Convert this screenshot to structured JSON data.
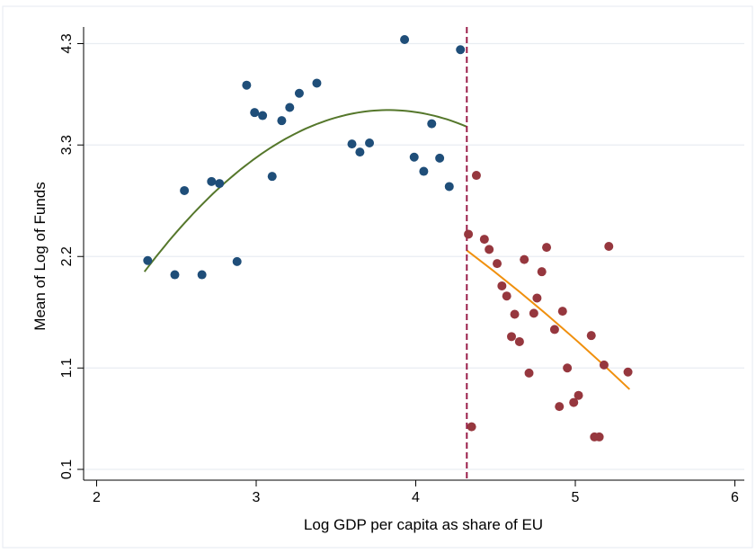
{
  "chart_data": {
    "type": "scatter",
    "title": "",
    "xlabel": "Log GDP per capita as share of EU",
    "ylabel": "Mean of Log of Funds",
    "xlim": [
      2,
      6
    ],
    "ylim": [
      0.1,
      4.3
    ],
    "xticks": [
      "2",
      "3",
      "4",
      "5",
      "6"
    ],
    "yticks": [
      "0.1",
      "1.1",
      "2.2",
      "3.3",
      "4.3"
    ],
    "grid": true,
    "threshold_x": 4.32,
    "colors": {
      "left_points": "#1f4e79",
      "right_points": "#96373e",
      "left_fit": "#55772b",
      "right_fit": "#f0900e",
      "threshold": "#9a1e4a"
    },
    "series": [
      {
        "points": [
          [
            2.32,
            2.16
          ],
          [
            2.49,
            2.02
          ],
          [
            2.55,
            2.85
          ],
          [
            2.66,
            2.02
          ],
          [
            2.72,
            2.94
          ],
          [
            2.77,
            2.92
          ],
          [
            2.88,
            2.15
          ],
          [
            2.94,
            3.89
          ],
          [
            2.99,
            3.62
          ],
          [
            3.04,
            3.59
          ],
          [
            3.1,
            2.99
          ],
          [
            3.16,
            3.54
          ],
          [
            3.21,
            3.67
          ],
          [
            3.27,
            3.81
          ],
          [
            3.38,
            3.91
          ],
          [
            3.6,
            3.31
          ],
          [
            3.65,
            3.23
          ],
          [
            3.71,
            3.32
          ],
          [
            3.93,
            4.34
          ],
          [
            3.99,
            3.18
          ],
          [
            4.05,
            3.04
          ],
          [
            4.1,
            3.51
          ],
          [
            4.15,
            3.17
          ],
          [
            4.21,
            2.89
          ],
          [
            4.28,
            4.24
          ]
        ],
        "fit": [
          [
            2.3,
            2.05
          ],
          [
            3.75,
            3.64
          ],
          [
            4.32,
            3.48
          ]
        ]
      },
      {
        "points": [
          [
            4.33,
            2.42
          ],
          [
            4.35,
            0.52
          ],
          [
            4.38,
            3.0
          ],
          [
            4.43,
            2.37
          ],
          [
            4.46,
            2.27
          ],
          [
            4.51,
            2.13
          ],
          [
            4.54,
            1.91
          ],
          [
            4.57,
            1.81
          ],
          [
            4.6,
            1.41
          ],
          [
            4.62,
            1.63
          ],
          [
            4.65,
            1.36
          ],
          [
            4.68,
            2.17
          ],
          [
            4.71,
            1.05
          ],
          [
            4.74,
            1.64
          ],
          [
            4.76,
            1.79
          ],
          [
            4.79,
            2.05
          ],
          [
            4.82,
            2.29
          ],
          [
            4.87,
            1.48
          ],
          [
            4.9,
            0.72
          ],
          [
            4.92,
            1.66
          ],
          [
            4.95,
            1.1
          ],
          [
            4.99,
            0.76
          ],
          [
            5.02,
            0.83
          ],
          [
            5.1,
            1.42
          ],
          [
            5.12,
            0.42
          ],
          [
            5.15,
            0.42
          ],
          [
            5.18,
            1.13
          ],
          [
            5.21,
            2.3
          ],
          [
            5.33,
            1.06
          ]
        ],
        "fit": [
          [
            4.32,
            2.26
          ],
          [
            5.34,
            0.89
          ]
        ]
      }
    ]
  }
}
